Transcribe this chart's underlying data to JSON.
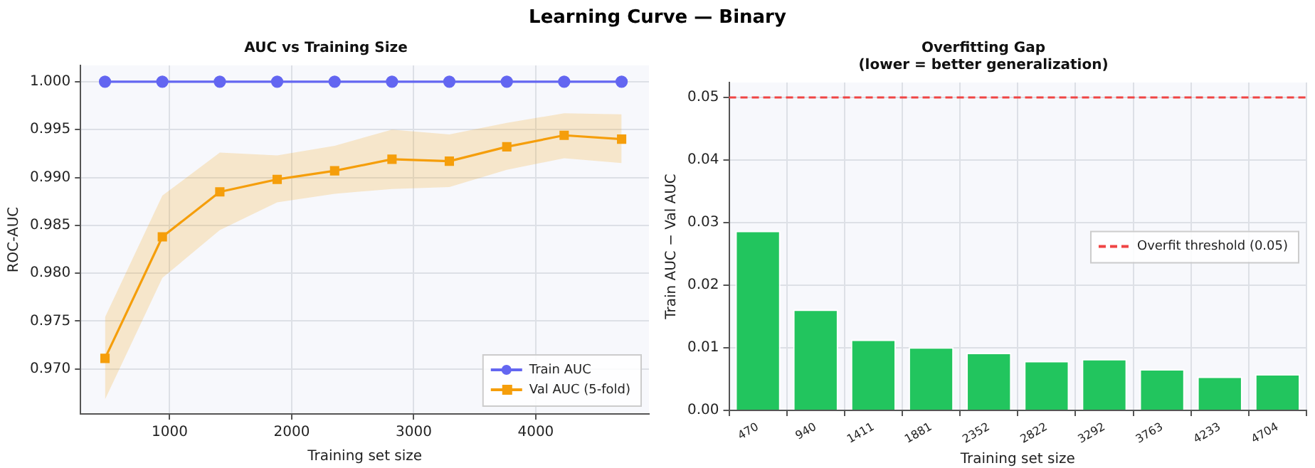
{
  "chart_data": [
    {
      "type": "line",
      "title": "AUC vs Training Size",
      "annotations": [
        "Learning Curve — Binary"
      ],
      "xlabel": "Training set size",
      "ylabel": "ROC-AUC",
      "x": [
        470,
        940,
        1411,
        1881,
        2352,
        2822,
        3292,
        3763,
        4233,
        4704
      ],
      "series": [
        {
          "name": "Train AUC",
          "color": "#6366f1",
          "marker": "circle",
          "values": [
            1.0,
            1.0,
            1.0,
            1.0,
            1.0,
            1.0,
            1.0,
            1.0,
            1.0,
            1.0
          ]
        },
        {
          "name": "Val AUC (5-fold)",
          "color": "#f59e0b",
          "marker": "square",
          "values": [
            0.9711,
            0.9838,
            0.9885,
            0.9898,
            0.9907,
            0.9919,
            0.9917,
            0.9932,
            0.9944,
            0.994
          ],
          "lower": [
            0.9668,
            0.9795,
            0.9845,
            0.9874,
            0.9883,
            0.9888,
            0.989,
            0.9908,
            0.992,
            0.9915
          ],
          "upper": [
            0.9754,
            0.9881,
            0.9926,
            0.9923,
            0.9933,
            0.995,
            0.9945,
            0.9957,
            0.9967,
            0.9966
          ]
        }
      ],
      "xlim": [
        270,
        4928
      ],
      "xticks": [
        1000,
        2000,
        3000,
        4000
      ],
      "ylim": [
        0.9653,
        1.0017
      ],
      "yticks": [
        {
          "value": 0.97,
          "label": "0.970"
        },
        {
          "value": 0.975,
          "label": "0.975"
        },
        {
          "value": 0.98,
          "label": "0.980"
        },
        {
          "value": 0.985,
          "label": "0.985"
        },
        {
          "value": 0.99,
          "label": "0.990"
        },
        {
          "value": 0.995,
          "label": "0.995"
        },
        {
          "value": 1.0,
          "label": "1.000"
        }
      ],
      "grid": true,
      "legend": "bottom right"
    },
    {
      "type": "bar",
      "title": "Overfitting Gap",
      "subtitle": "(lower = better generalization)",
      "xlabel": "Training set size",
      "ylabel": "Train AUC − Val AUC",
      "categories": [
        "470",
        "940",
        "1411",
        "1881",
        "2352",
        "2822",
        "3292",
        "3763",
        "4233",
        "4704"
      ],
      "values": [
        0.0287,
        0.0161,
        0.0113,
        0.0101,
        0.0092,
        0.0079,
        0.0082,
        0.0066,
        0.0054,
        0.0058
      ],
      "color": "#22c55e",
      "ylim": [
        0,
        0.0524
      ],
      "yticks": [
        {
          "value": 0,
          "label": "0.00"
        },
        {
          "value": 0.01,
          "label": "0.01"
        },
        {
          "value": 0.02,
          "label": "0.02"
        },
        {
          "value": 0.03,
          "label": "0.03"
        },
        {
          "value": 0.04,
          "label": "0.04"
        },
        {
          "value": 0.05,
          "label": "0.05"
        }
      ],
      "ref_lines": [
        {
          "axis": "y",
          "value": 0.05,
          "label": "Overfit threshold (0.05)",
          "color": "#ef4444",
          "line_style": "dashed"
        }
      ],
      "grid": true,
      "legend": "right"
    }
  ]
}
